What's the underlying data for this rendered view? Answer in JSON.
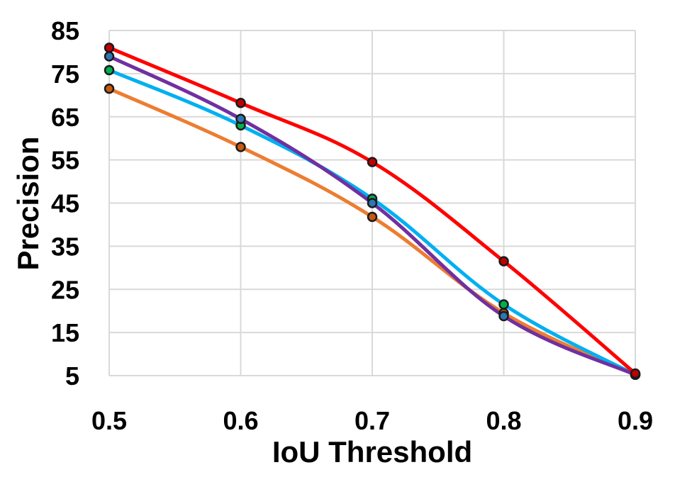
{
  "chart_data": {
    "type": "line",
    "title": "",
    "xlabel": "IoU Threshold",
    "ylabel": "Precision",
    "x": [
      0.5,
      0.6,
      0.7,
      0.8,
      0.9
    ],
    "x_tick_labels": [
      "0.5",
      "0.6",
      "0.7",
      "0.8",
      "0.9"
    ],
    "y_ticks": [
      5,
      15,
      25,
      35,
      45,
      55,
      65,
      75,
      85
    ],
    "y_tick_labels": [
      "5",
      "15",
      "25",
      "35",
      "45",
      "55",
      "65",
      "75",
      "85"
    ],
    "xlim": [
      0.5,
      0.9
    ],
    "ylim": [
      5,
      85
    ],
    "grid": true,
    "legend": "none",
    "series": [
      {
        "name": "orange",
        "color": "#ED7D31",
        "marker_color": "#C55A11",
        "values": [
          71.5,
          58,
          41.8,
          19.5,
          5.2
        ]
      },
      {
        "name": "cyan",
        "color": "#00B0F0",
        "marker_color": "#00B050",
        "values": [
          75.8,
          63,
          46,
          21.5,
          5.2
        ]
      },
      {
        "name": "purple",
        "color": "#7030A0",
        "marker_color": "#2E75B6",
        "values": [
          79,
          64.5,
          45,
          18.8,
          5.2
        ]
      },
      {
        "name": "red",
        "color": "#FF0000",
        "marker_color": "#C00000",
        "values": [
          81,
          68.2,
          54.5,
          31.5,
          5.5
        ]
      }
    ]
  }
}
